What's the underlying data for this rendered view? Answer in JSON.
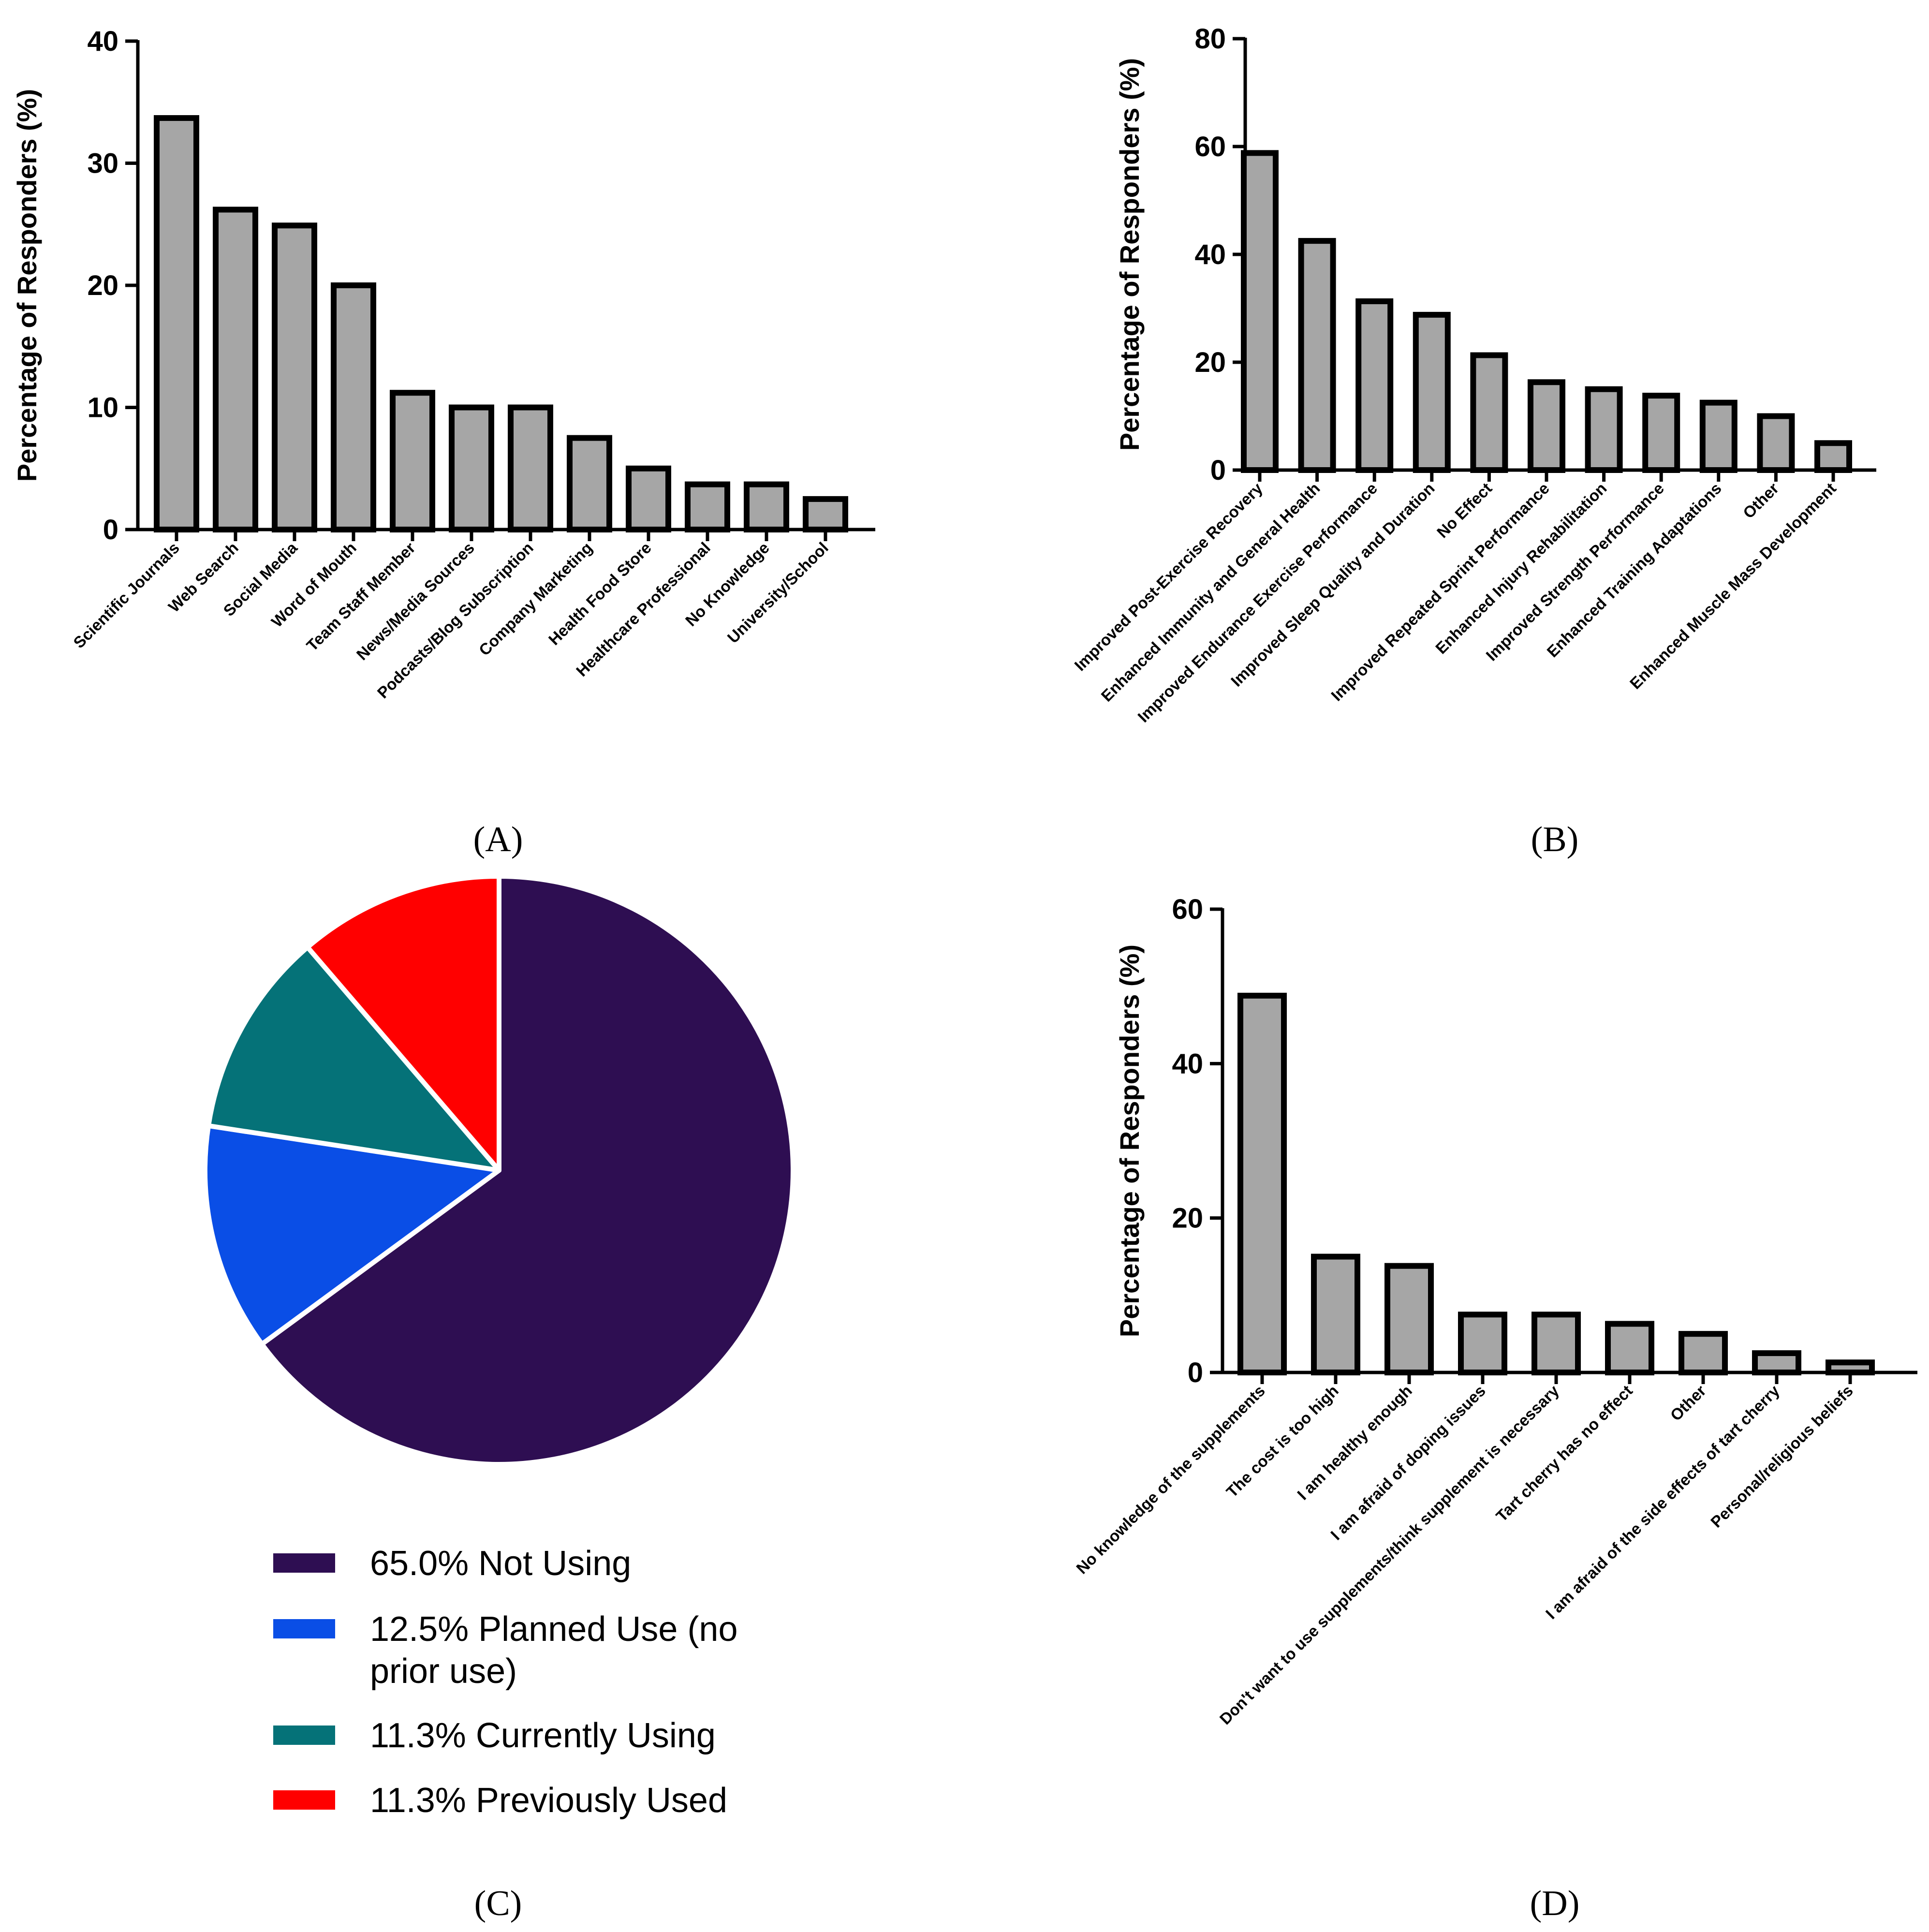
{
  "chart_data": [
    {
      "panel": "A",
      "panel_label": "(A)",
      "type": "bar",
      "ylabel": "Percentage of Responders (%)",
      "ylim": [
        0,
        40
      ],
      "yticks": [
        "0",
        "10",
        "20",
        "30",
        "40"
      ],
      "categories": [
        "Scientific Journals",
        "Web Search",
        "Social Media",
        "Word of Mouth",
        "Team Staff Member",
        "News/Media Sources",
        "Podcasts/Blog Subscription",
        "Company Marketing",
        "Health Food Store",
        "Healthcare Professional",
        "No Knowledge",
        "University/School"
      ],
      "values": [
        33.7,
        26.2,
        24.9,
        20.0,
        11.2,
        10.0,
        10.0,
        7.5,
        5.0,
        3.7,
        3.7,
        2.5
      ],
      "bar_color": "#a6a6a6"
    },
    {
      "panel": "B",
      "panel_label": "(B)",
      "type": "bar",
      "ylabel": "Percentage of Responders (%)",
      "ylim": [
        0,
        80
      ],
      "yticks": [
        "0",
        "20",
        "40",
        "60",
        "80"
      ],
      "categories": [
        "Improved Post-Exercise Recovery",
        "Enhanced Immunity and General Health",
        "Improved Endurance Exercise Performance",
        "Improved Sleep Quality and Duration",
        "No Effect",
        "Improved Repeated Sprint Performance",
        "Enhanced Injury Rehabilitation",
        "Improved Strength Performance",
        "Enhanced Training Adaptations",
        "Other",
        "Enhanced Muscle Mass Development"
      ],
      "values": [
        58.8,
        42.5,
        31.3,
        28.8,
        21.3,
        16.3,
        15.0,
        13.8,
        12.5,
        10.0,
        5.0
      ],
      "bar_color": "#a6a6a6"
    },
    {
      "panel": "C",
      "panel_label": "(C)",
      "type": "pie",
      "slices": [
        {
          "label": "65.0% Not Using",
          "value": 65.0,
          "color": "#2e0e52"
        },
        {
          "label": "12.5% Planned Use (no prior use)",
          "value": 12.5,
          "color": "#0a4ee6"
        },
        {
          "label": "11.3% Currently Using",
          "value": 11.3,
          "color": "#057278"
        },
        {
          "label": "11.3% Previously Used",
          "value": 11.3,
          "color": "#ff0000"
        }
      ]
    },
    {
      "panel": "D",
      "panel_label": "(D)",
      "type": "bar",
      "ylabel": "Percentage of Responders (%)",
      "ylim": [
        0,
        60
      ],
      "yticks": [
        "0",
        "20",
        "40",
        "60"
      ],
      "categories": [
        "No knowledge of the supplements",
        "The cost is too high",
        "I am healthy enough",
        "I am afraid of doping issues",
        "Don't want to use supplements/think supplement is necessary",
        "Tart cherry has no effect",
        "Other",
        "I am afraid of the side effects of tart cherry",
        "Personal/religious beliefs"
      ],
      "values": [
        48.8,
        15.0,
        13.8,
        7.5,
        7.5,
        6.3,
        5.0,
        2.5,
        1.3
      ],
      "bar_color": "#a6a6a6"
    }
  ]
}
